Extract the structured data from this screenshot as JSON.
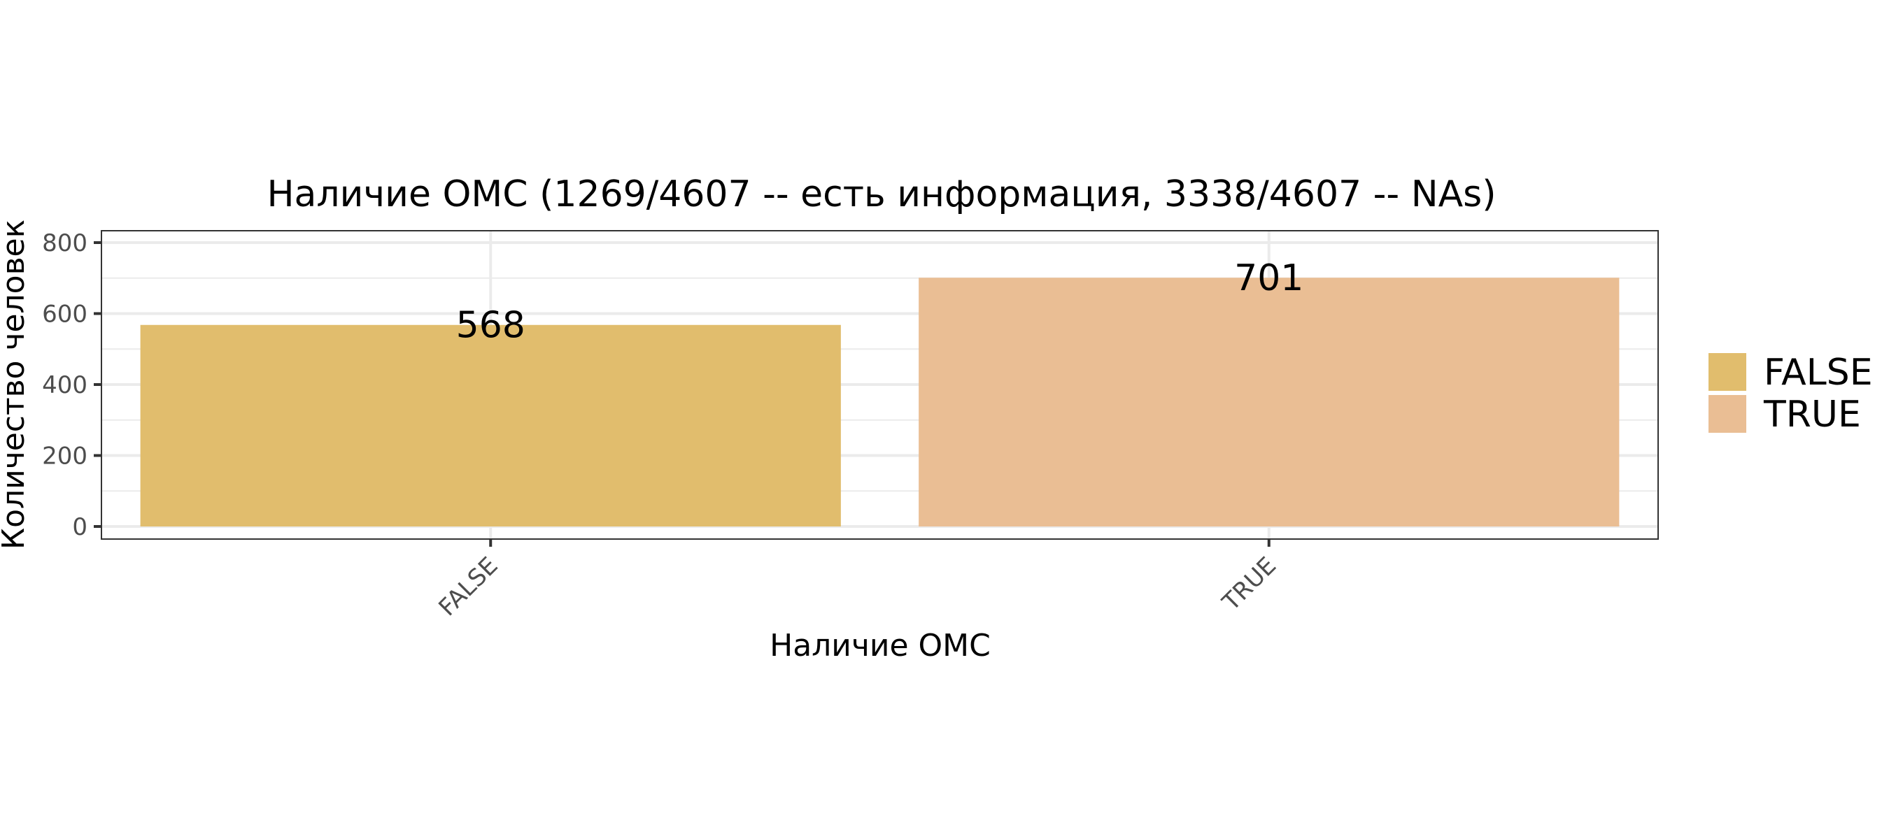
{
  "chart_data": {
    "type": "bar",
    "title": "Наличие ОМС (1269/4607 -- есть информация, 3338/4607 -- NAs)",
    "xlabel": "Наличие ОМС",
    "ylabel": "Количество человек",
    "categories": [
      "FALSE",
      "TRUE"
    ],
    "values": [
      568,
      701
    ],
    "colors": [
      "#E1BD6D",
      "#EABE94"
    ],
    "ylim": [
      0,
      800
    ],
    "yticks": [
      0,
      200,
      400,
      600,
      800
    ],
    "grid": true,
    "legend": {
      "position": "right",
      "entries": [
        "FALSE",
        "TRUE"
      ]
    }
  }
}
